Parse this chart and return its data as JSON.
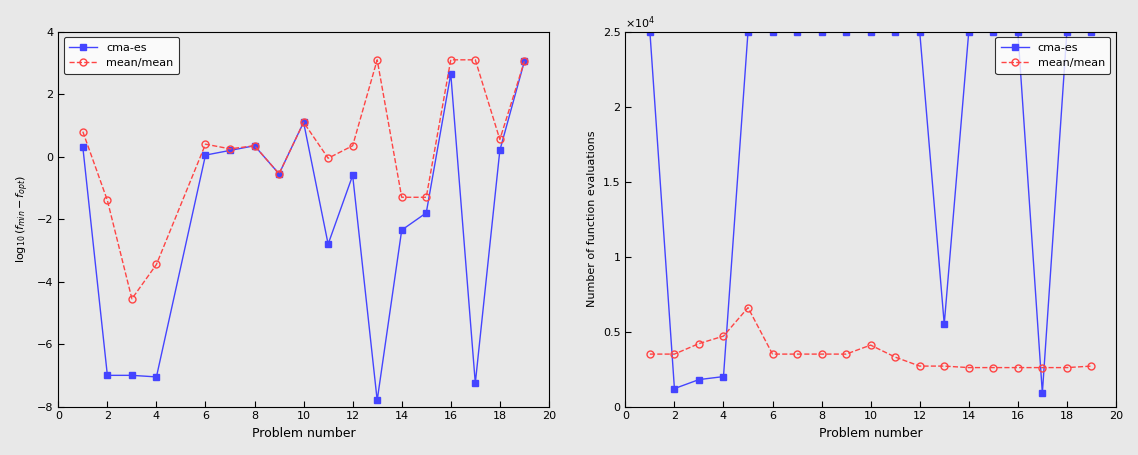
{
  "left": {
    "x_cma": [
      1,
      2,
      3,
      4,
      6,
      7,
      8,
      9,
      10,
      11,
      12,
      13,
      14,
      15,
      16,
      17,
      18,
      19
    ],
    "y_cma": [
      0.3,
      -7.0,
      -7.0,
      -7.05,
      0.05,
      0.2,
      0.35,
      -0.55,
      1.1,
      -2.8,
      -0.6,
      -7.8,
      -2.35,
      -1.8,
      2.65,
      -7.25,
      0.2,
      3.05
    ],
    "x_mean": [
      1,
      2,
      3,
      4,
      6,
      7,
      8,
      9,
      10,
      11,
      12,
      13,
      14,
      15,
      16,
      17,
      18,
      19
    ],
    "y_mean": [
      0.8,
      -1.4,
      -4.55,
      -3.45,
      0.4,
      0.25,
      0.35,
      -0.55,
      1.1,
      -0.05,
      0.35,
      3.1,
      -1.3,
      -1.3,
      3.1,
      3.1,
      0.55,
      3.05
    ],
    "xlabel": "Problem number",
    "ylabel": "log_{10}(f_{min} - f_{opt})",
    "xlim": [
      0,
      20
    ],
    "ylim": [
      -8,
      4
    ],
    "yticks": [
      -8,
      -6,
      -4,
      -2,
      0,
      2,
      4
    ],
    "xticks": [
      0,
      2,
      4,
      6,
      8,
      10,
      12,
      14,
      16,
      18,
      20
    ]
  },
  "right": {
    "x_cma": [
      1,
      2,
      3,
      4,
      5,
      6,
      7,
      8,
      9,
      10,
      11,
      12,
      13,
      14,
      15,
      16,
      17,
      18,
      19
    ],
    "y_cma": [
      25000,
      1200,
      1800,
      2000,
      25000,
      25000,
      25000,
      25000,
      25000,
      25000,
      25000,
      25000,
      5500,
      25000,
      25000,
      25000,
      900,
      25000,
      25000
    ],
    "x_mean": [
      1,
      2,
      3,
      4,
      5,
      6,
      7,
      8,
      9,
      10,
      11,
      12,
      13,
      14,
      15,
      16,
      17,
      18,
      19
    ],
    "y_mean": [
      3500,
      3500,
      4200,
      4700,
      6600,
      3500,
      3500,
      3500,
      3500,
      4100,
      3300,
      2700,
      2700,
      2600,
      2600,
      2600,
      2600,
      2600,
      2700
    ],
    "xlabel": "Problem number",
    "ylabel": "Number of function evaluations",
    "xlim": [
      0,
      20
    ],
    "ylim": [
      0,
      25000
    ],
    "xticks": [
      0,
      2,
      4,
      6,
      8,
      10,
      12,
      14,
      16,
      18,
      20
    ]
  },
  "cma_color": "#4444ff",
  "mean_color": "#ff4444",
  "cma_label": "cma-es",
  "mean_label": "mean/mean",
  "bg_color": "#e8e8e8"
}
